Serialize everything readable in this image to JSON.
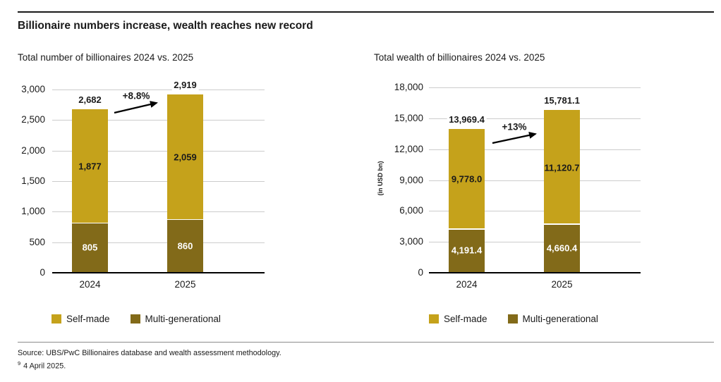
{
  "page": {
    "title": "Billionaire numbers increase, wealth reaches new record",
    "source_line": "Source: UBS/PwC Billionaires database and wealth assessment methodology.",
    "footnote_marker": "9",
    "footnote_text": "4 April 2025."
  },
  "colors": {
    "self_made": "#C5A21B",
    "multi_generational": "#826A19",
    "gridline": "#CCCCCC",
    "axis_line": "#000000",
    "title_rule": "#1A1A1A",
    "segment_label_on_dark": "#FFFFFF",
    "segment_label_on_gold": "#1A1A1A"
  },
  "legend": {
    "self_made": "Self-made",
    "multi_generational": "Multi-generational"
  },
  "chart_data": [
    {
      "type": "bar",
      "stacked": true,
      "title": "Total number of billionaires 2024 vs. 2025",
      "categories": [
        "2024",
        "2025"
      ],
      "series": [
        {
          "name": "Multi-generational",
          "values": [
            805,
            860
          ],
          "labels": [
            "805",
            "860"
          ]
        },
        {
          "name": "Self-made",
          "values": [
            1877,
            2059
          ],
          "labels": [
            "1,877",
            "2,059"
          ]
        }
      ],
      "totals": [
        2682,
        2919
      ],
      "total_labels": [
        "2,682",
        "2,919"
      ],
      "change_annotation": "+8.8%",
      "ylabel": "",
      "xlabel": "",
      "ylim": [
        0,
        3000
      ],
      "yticks": [
        0,
        500,
        1000,
        1500,
        2000,
        2500,
        3000
      ],
      "ytick_labels": [
        "0",
        "500",
        "1,000",
        "1,500",
        "2,000",
        "2,500",
        "3,000"
      ],
      "grid": true,
      "legend_position": "bottom"
    },
    {
      "type": "bar",
      "stacked": true,
      "title": "Total wealth of billionaires 2024 vs. 2025",
      "categories": [
        "2024",
        "2025"
      ],
      "series": [
        {
          "name": "Multi-generational",
          "values": [
            4191.4,
            4660.4
          ],
          "labels": [
            "4,191.4",
            "4,660.4"
          ]
        },
        {
          "name": "Self-made",
          "values": [
            9778.0,
            11120.7
          ],
          "labels": [
            "9,778.0",
            "11,120.7"
          ]
        }
      ],
      "totals": [
        13969.4,
        15781.1
      ],
      "total_labels": [
        "13,969.4",
        "15,781.1"
      ],
      "change_annotation": "+13%",
      "ylabel": "(in USD bn)",
      "xlabel": "",
      "ylim": [
        0,
        18000
      ],
      "yticks": [
        0,
        3000,
        6000,
        9000,
        12000,
        15000,
        18000
      ],
      "ytick_labels": [
        "0",
        "3,000",
        "6,000",
        "9,000",
        "12,000",
        "15,000",
        "18,000"
      ],
      "grid": true,
      "legend_position": "bottom"
    }
  ]
}
